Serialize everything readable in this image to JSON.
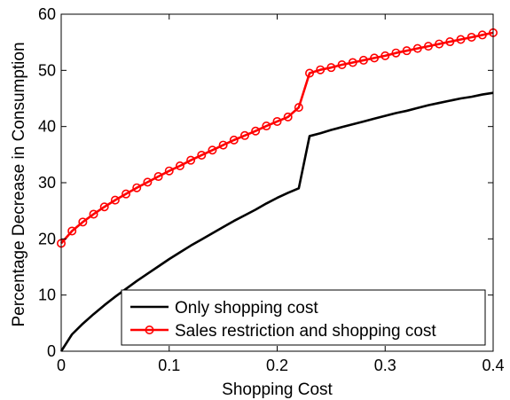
{
  "chart_data": {
    "type": "line",
    "xlabel": "Shopping Cost",
    "ylabel": "Percentage Decrease in Consumption",
    "xlim": [
      0,
      0.4
    ],
    "ylim": [
      0,
      60
    ],
    "xticks": [
      0,
      0.1,
      0.2,
      0.3,
      0.4
    ],
    "xtick_labels": [
      "0",
      "0.1",
      "0.2",
      "0.3",
      "0.4"
    ],
    "yticks": [
      0,
      10,
      20,
      30,
      40,
      50,
      60
    ],
    "ytick_labels": [
      "0",
      "10",
      "20",
      "30",
      "40",
      "50",
      "60"
    ],
    "grid": false,
    "legend_position": "bottom-right",
    "series": [
      {
        "name": "Only shopping cost",
        "color": "#000000",
        "marker": "none",
        "x": [
          0,
          0.01,
          0.02,
          0.03,
          0.04,
          0.05,
          0.06,
          0.07,
          0.08,
          0.09,
          0.1,
          0.11,
          0.12,
          0.13,
          0.14,
          0.15,
          0.16,
          0.17,
          0.18,
          0.19,
          0.2,
          0.21,
          0.22,
          0.23,
          0.24,
          0.25,
          0.26,
          0.27,
          0.28,
          0.29,
          0.3,
          0.31,
          0.32,
          0.33,
          0.34,
          0.35,
          0.36,
          0.37,
          0.38,
          0.39,
          0.4
        ],
        "y": [
          0,
          3.0,
          4.9,
          6.6,
          8.2,
          9.7,
          11.1,
          12.5,
          13.8,
          15.1,
          16.4,
          17.6,
          18.8,
          19.9,
          21.0,
          22.1,
          23.2,
          24.2,
          25.2,
          26.3,
          27.3,
          28.2,
          29.0,
          38.3,
          38.8,
          39.4,
          39.9,
          40.4,
          40.9,
          41.4,
          41.9,
          42.4,
          42.8,
          43.3,
          43.8,
          44.2,
          44.6,
          45.0,
          45.3,
          45.7,
          46.0
        ]
      },
      {
        "name": "Sales restriction and shopping cost",
        "color": "#ff0000",
        "marker": "circle",
        "x": [
          0,
          0.01,
          0.02,
          0.03,
          0.04,
          0.05,
          0.06,
          0.07,
          0.08,
          0.09,
          0.1,
          0.11,
          0.12,
          0.13,
          0.14,
          0.15,
          0.16,
          0.17,
          0.18,
          0.19,
          0.2,
          0.21,
          0.22,
          0.23,
          0.24,
          0.25,
          0.26,
          0.27,
          0.28,
          0.29,
          0.3,
          0.31,
          0.32,
          0.33,
          0.34,
          0.35,
          0.36,
          0.37,
          0.38,
          0.39,
          0.4
        ],
        "y": [
          19.2,
          21.4,
          23.0,
          24.4,
          25.7,
          26.9,
          28.0,
          29.1,
          30.1,
          31.1,
          32.1,
          33.0,
          34.0,
          34.9,
          35.8,
          36.7,
          37.6,
          38.4,
          39.2,
          40.1,
          40.9,
          41.7,
          43.4,
          49.5,
          50.1,
          50.5,
          51.0,
          51.4,
          51.8,
          52.2,
          52.6,
          53.1,
          53.5,
          53.9,
          54.3,
          54.7,
          55.1,
          55.5,
          55.9,
          56.3,
          56.7
        ]
      }
    ]
  }
}
